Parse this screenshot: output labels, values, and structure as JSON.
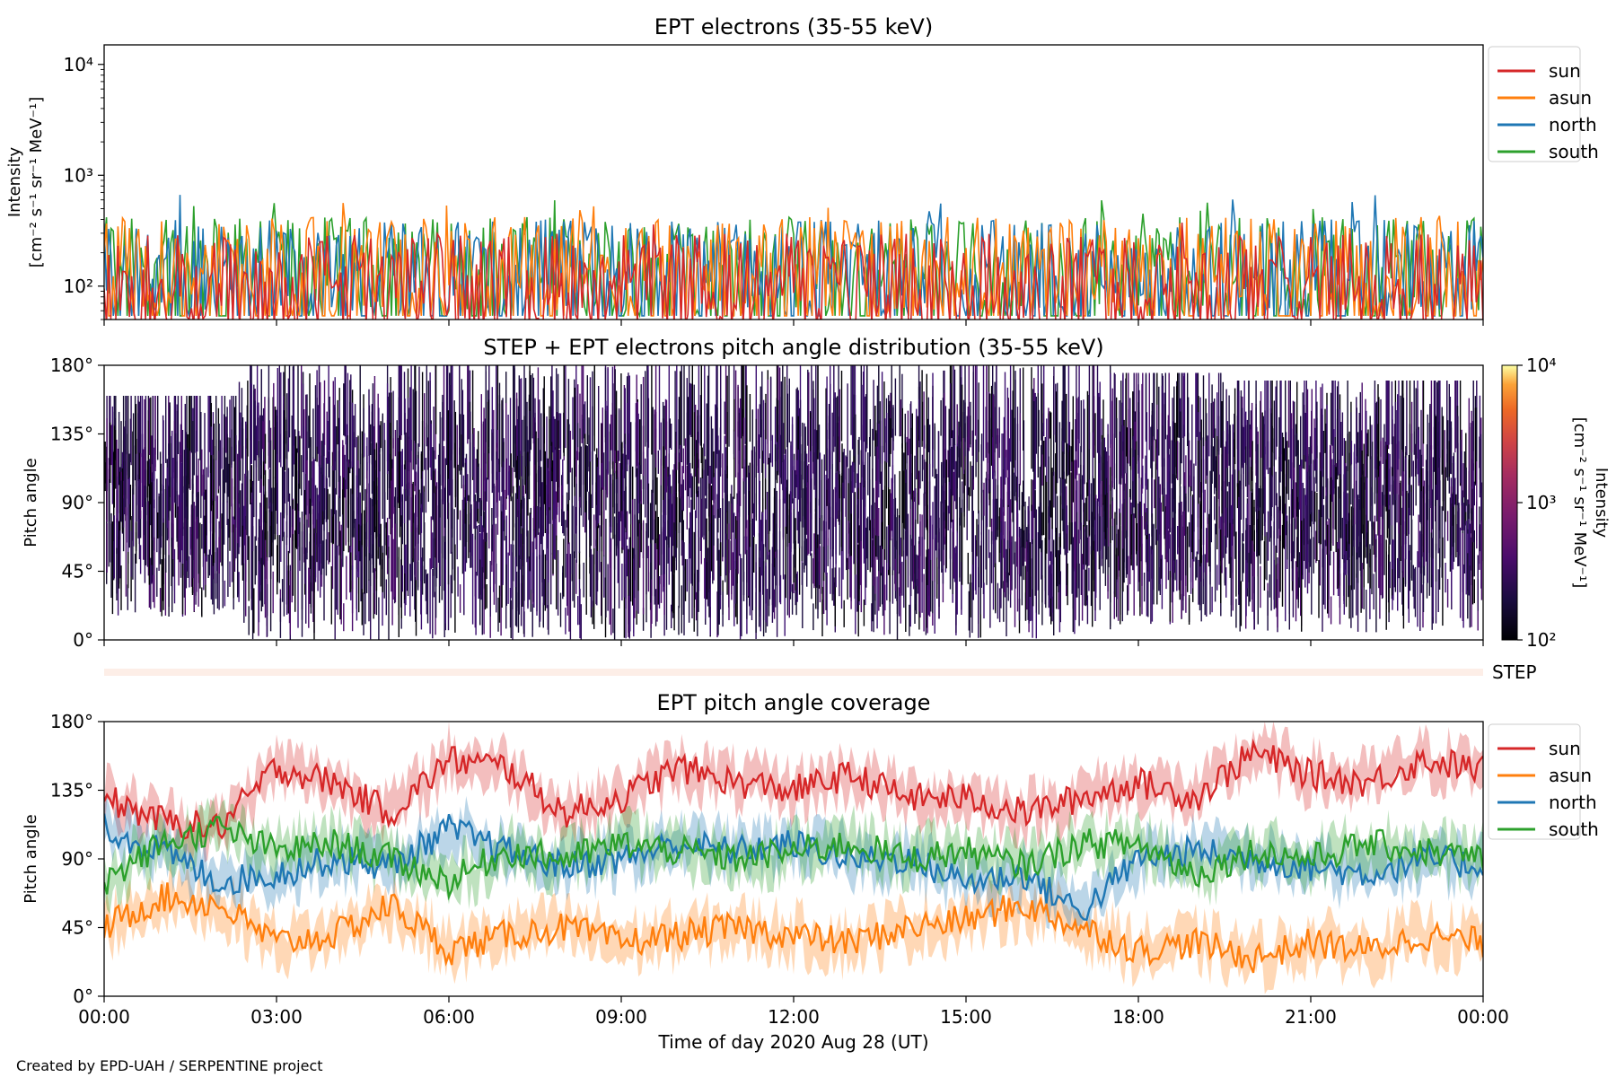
{
  "chart_data": [
    {
      "type": "line",
      "title": "EPT electrons (35-55 keV)",
      "ylabel": [
        "Intensity",
        "[cm⁻² s⁻¹ sr⁻¹ MeV⁻¹]"
      ],
      "yscale": "log",
      "ylim": [
        50,
        15000
      ],
      "yticks": [
        {
          "value": 100,
          "label": "10²"
        },
        {
          "value": 1000,
          "label": "10³"
        },
        {
          "value": 10000,
          "label": "10⁴"
        }
      ],
      "xlim": [
        "00:00",
        "24:00"
      ],
      "legend_placement": "outside-right",
      "series": [
        {
          "name": "sun",
          "color": "#d62728",
          "typical_range": [
            50,
            300
          ],
          "peak_max": 450
        },
        {
          "name": "asun",
          "color": "#ff7f0e",
          "typical_range": [
            60,
            420
          ],
          "peak_max": 620
        },
        {
          "name": "north",
          "color": "#1f77b4",
          "typical_range": [
            60,
            400
          ],
          "peak_max": 700
        },
        {
          "name": "south",
          "color": "#2ca02c",
          "typical_range": [
            60,
            420
          ],
          "peak_max": 600
        }
      ]
    },
    {
      "type": "heatmap",
      "title": "STEP + EPT electrons pitch angle distribution (35-55 keV)",
      "ylabel": "Pitch angle",
      "ylim": [
        0,
        180
      ],
      "yticks": [
        0,
        45,
        90,
        135,
        180
      ],
      "ytick_labels": [
        "0°",
        "45°",
        "90°",
        "135°",
        "180°"
      ],
      "xlim": [
        "00:00",
        "24:00"
      ],
      "colorbar": {
        "label": [
          "Intensity",
          "[cm⁻² s⁻¹ sr⁻¹ MeV⁻¹]"
        ],
        "scale": "log",
        "range": [
          100,
          10000
        ],
        "ticks": [
          {
            "value": 100,
            "label": "10²"
          },
          {
            "value": 1000,
            "label": "10³"
          },
          {
            "value": 10000,
            "label": "10⁴"
          }
        ],
        "colormap": "inferno"
      },
      "bands": [
        {
          "x": [
            0.0,
            2.3
          ],
          "pa": [
            15,
            160
          ]
        },
        {
          "x": [
            2.3,
            5.0
          ],
          "pa": [
            0,
            180
          ]
        },
        {
          "x": [
            5.0,
            7.5
          ],
          "pa": [
            0,
            180
          ]
        },
        {
          "x": [
            7.5,
            17.5
          ],
          "pa": [
            0,
            180
          ]
        },
        {
          "x": [
            17.5,
            19.5
          ],
          "pa": [
            10,
            175
          ]
        },
        {
          "x": [
            19.5,
            24.0
          ],
          "pa": [
            5,
            170
          ]
        }
      ]
    },
    {
      "type": "strip",
      "label": "STEP",
      "color": "#fdeee7"
    },
    {
      "type": "line",
      "title": "EPT pitch angle coverage",
      "ylabel": "Pitch angle",
      "ylim": [
        0,
        180
      ],
      "yticks": [
        0,
        45,
        90,
        135,
        180
      ],
      "ytick_labels": [
        "0°",
        "45°",
        "90°",
        "135°",
        "180°"
      ],
      "xlim": [
        "00:00",
        "24:00"
      ],
      "xticks": [
        0,
        3,
        6,
        9,
        12,
        15,
        18,
        21,
        24
      ],
      "xtick_labels": [
        "00:00",
        "03:00",
        "06:00",
        "09:00",
        "12:00",
        "15:00",
        "18:00",
        "21:00",
        "00:00"
      ],
      "xlabel": "Time of day 2020 Aug 28 (UT)",
      "legend_placement": "outside-right",
      "x": [
        0,
        1,
        2,
        3,
        4,
        5,
        6,
        7,
        8,
        9,
        10,
        11,
        12,
        13,
        14,
        15,
        16,
        17,
        18,
        19,
        20,
        21,
        22,
        23,
        24
      ],
      "series": [
        {
          "name": "sun",
          "color": "#d62728",
          "values": [
            130,
            115,
            110,
            150,
            140,
            120,
            155,
            150,
            120,
            130,
            150,
            140,
            135,
            145,
            130,
            130,
            120,
            130,
            140,
            130,
            160,
            145,
            140,
            155,
            148
          ]
        },
        {
          "name": "asun",
          "color": "#ff7f0e",
          "values": [
            45,
            65,
            60,
            35,
            40,
            60,
            30,
            40,
            45,
            35,
            40,
            45,
            40,
            35,
            45,
            50,
            60,
            45,
            30,
            35,
            25,
            35,
            30,
            40,
            35
          ]
        },
        {
          "name": "north",
          "color": "#1f77b4",
          "values": [
            110,
            95,
            75,
            80,
            90,
            85,
            110,
            95,
            85,
            90,
            100,
            95,
            100,
            90,
            90,
            75,
            80,
            55,
            90,
            95,
            90,
            85,
            80,
            90,
            85
          ]
        },
        {
          "name": "south",
          "color": "#2ca02c",
          "values": [
            75,
            100,
            110,
            95,
            100,
            90,
            75,
            95,
            90,
            100,
            95,
            90,
            95,
            100,
            90,
            95,
            85,
            100,
            100,
            80,
            95,
            90,
            100,
            95,
            90
          ]
        }
      ],
      "band_halfwidth_deg": 12
    }
  ],
  "footer": {
    "credit": "Created by EPD-UAH / SERPENTINE project"
  }
}
